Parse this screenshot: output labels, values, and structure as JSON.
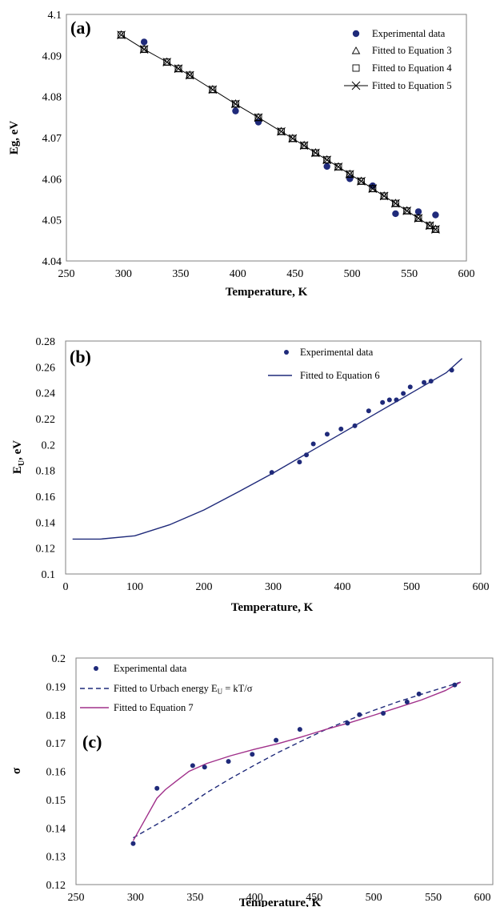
{
  "chart_data": [
    {
      "type": "scatter",
      "panel_label": "(a)",
      "xlabel": "Temperature, K",
      "ylabel": "Eg, eV",
      "xlim": [
        250,
        600
      ],
      "ylim": [
        4.04,
        4.1
      ],
      "x_ticks": [
        "250",
        "300",
        "350",
        "400",
        "450",
        "500",
        "550",
        "600"
      ],
      "y_ticks": [
        "4.04",
        "4.05",
        "4.06",
        "4.07",
        "4.08",
        "4.09",
        "4.1"
      ],
      "grid": false,
      "legend_position": "top-right",
      "series": [
        {
          "name": "Experimental data",
          "marker": "filled-circle",
          "color": "#1f2a7a",
          "x": [
            318,
            398,
            418,
            478,
            498,
            518,
            538,
            558,
            573
          ],
          "y": [
            4.0933,
            4.0765,
            4.0738,
            4.063,
            4.06,
            4.0583,
            4.0515,
            4.052,
            4.0512
          ]
        },
        {
          "name": "Fitted to Equation 3",
          "marker": "open-triangle",
          "color": "#000000",
          "x": [
            298,
            318,
            338,
            348,
            358,
            378,
            398,
            418,
            438,
            448,
            458,
            468,
            478,
            488,
            498,
            508,
            518,
            528,
            538,
            548,
            558,
            568,
            573
          ],
          "y": [
            4.095,
            4.0915,
            4.0884,
            4.0868,
            4.0852,
            4.0817,
            4.0782,
            4.0749,
            4.0715,
            4.0698,
            4.0681,
            4.0663,
            4.0646,
            4.0629,
            4.0611,
            4.0594,
            4.0576,
            4.0558,
            4.054,
            4.0522,
            4.0504,
            4.0486,
            4.0477
          ]
        },
        {
          "name": "Fitted to Equation 4",
          "marker": "open-square",
          "color": "#000000",
          "x": [
            298,
            318,
            338,
            348,
            358,
            378,
            398,
            418,
            438,
            448,
            458,
            468,
            478,
            488,
            498,
            508,
            518,
            528,
            538,
            548,
            558,
            568,
            573
          ],
          "y": [
            4.095,
            4.0915,
            4.0884,
            4.0868,
            4.0852,
            4.0817,
            4.0782,
            4.0749,
            4.0715,
            4.0698,
            4.0681,
            4.0663,
            4.0646,
            4.0629,
            4.0611,
            4.0594,
            4.0576,
            4.0558,
            4.054,
            4.0522,
            4.0504,
            4.0486,
            4.0477
          ]
        },
        {
          "name": "Fitted to Equation 5",
          "marker": "x",
          "line": "solid",
          "color": "#000000",
          "x": [
            298,
            318,
            338,
            348,
            358,
            378,
            398,
            418,
            438,
            448,
            458,
            468,
            478,
            488,
            498,
            508,
            518,
            528,
            538,
            548,
            558,
            568,
            573
          ],
          "y": [
            4.095,
            4.0915,
            4.0884,
            4.0868,
            4.0852,
            4.0817,
            4.0782,
            4.0749,
            4.0715,
            4.0698,
            4.0681,
            4.0663,
            4.0646,
            4.0629,
            4.0611,
            4.0594,
            4.0576,
            4.0558,
            4.054,
            4.0522,
            4.0504,
            4.0486,
            4.0477
          ]
        }
      ]
    },
    {
      "type": "scatter",
      "panel_label": "(b)",
      "xlabel": "Temperature, K",
      "ylabel": "E",
      "ylabel_sub": "U",
      "ylabel_suffix": ", eV",
      "xlim": [
        0,
        600
      ],
      "ylim": [
        0.1,
        0.28
      ],
      "x_ticks": [
        "0",
        "100",
        "200",
        "300",
        "400",
        "500",
        "600"
      ],
      "y_ticks": [
        "0.1",
        "0.12",
        "0.14",
        "0.16",
        "0.18",
        "0.2",
        "0.22",
        "0.24",
        "0.26",
        "0.28"
      ],
      "grid": false,
      "legend_position": "top-center",
      "series": [
        {
          "name": "Experimental data",
          "marker": "small-filled-circle",
          "color": "#1f2a7a",
          "x": [
            298,
            338,
            348,
            358,
            378,
            398,
            418,
            438,
            458,
            468,
            478,
            488,
            498,
            518,
            528,
            558
          ],
          "y": [
            0.1785,
            0.1865,
            0.192,
            0.2005,
            0.208,
            0.212,
            0.2145,
            0.226,
            0.2325,
            0.2345,
            0.2345,
            0.2395,
            0.2445,
            0.248,
            0.249,
            0.2575
          ]
        },
        {
          "name": "Fitted to Equation 6",
          "line": "solid",
          "color": "#1f2a7a",
          "x": [
            10,
            50,
            100,
            150,
            200,
            250,
            300,
            350,
            400,
            450,
            500,
            550,
            573
          ],
          "y": [
            0.127,
            0.127,
            0.1295,
            0.138,
            0.1495,
            0.1635,
            0.178,
            0.1935,
            0.209,
            0.2245,
            0.24,
            0.2555,
            0.2665
          ]
        }
      ]
    },
    {
      "type": "scatter",
      "panel_label": "(c)",
      "xlabel": "Temperature, K",
      "ylabel": "σ",
      "xlim": [
        250,
        600
      ],
      "ylim": [
        0.12,
        0.2
      ],
      "x_ticks": [
        "250",
        "300",
        "350",
        "400",
        "450",
        "500",
        "550",
        "600"
      ],
      "y_ticks": [
        "0.12",
        "0.13",
        "0.14",
        "0.15",
        "0.16",
        "0.17",
        "0.18",
        "0.19",
        "0.2"
      ],
      "grid": false,
      "legend_position": "top-left",
      "series": [
        {
          "name": "Experimental data",
          "marker": "small-filled-circle",
          "color": "#1f2a7a",
          "x": [
            298,
            318,
            348,
            358,
            378,
            398,
            418,
            438,
            478,
            488,
            508,
            528,
            538,
            568
          ],
          "y": [
            0.1345,
            0.154,
            0.162,
            0.1615,
            0.1635,
            0.166,
            0.171,
            0.1748,
            0.177,
            0.18,
            0.1805,
            0.1845,
            0.1873,
            0.1905
          ]
        },
        {
          "name": "Fitted to Urbach energy E",
          "name_sub": "U",
          "name_suffix": " = kT/σ",
          "line": "dashed",
          "color": "#1f2a7a",
          "x": [
            298,
            320,
            340,
            360,
            380,
            400,
            420,
            440,
            460,
            480,
            500,
            520,
            540,
            560,
            573
          ],
          "y": [
            0.1365,
            0.1418,
            0.1468,
            0.1525,
            0.1575,
            0.1622,
            0.1667,
            0.1708,
            0.1748,
            0.1783,
            0.1815,
            0.1845,
            0.1872,
            0.1898,
            0.1915
          ]
        },
        {
          "name": "Fitted to Equation 7",
          "line": "solid",
          "color": "#a0308a",
          "x": [
            298,
            310,
            318,
            325,
            335,
            345,
            360,
            380,
            400,
            420,
            440,
            460,
            480,
            500,
            520,
            540,
            560,
            573
          ],
          "y": [
            0.1355,
            0.1445,
            0.1505,
            0.1535,
            0.1568,
            0.16,
            0.1628,
            0.1655,
            0.1678,
            0.1698,
            0.1722,
            0.1748,
            0.1772,
            0.1798,
            0.1825,
            0.1852,
            0.1885,
            0.1915
          ]
        }
      ]
    }
  ]
}
